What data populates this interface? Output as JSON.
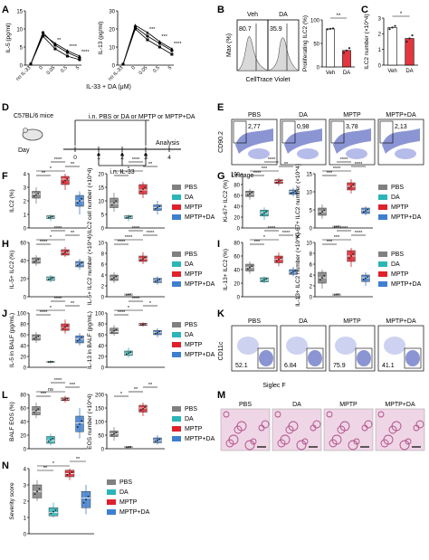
{
  "panels": {
    "A": {
      "letter": "A",
      "xlabel": "IL-33 + DA (μM)",
      "xticks": [
        "no IL-33",
        "0",
        "0.05",
        "0.5",
        "5"
      ]
    },
    "B": {
      "letter": "B",
      "veh": "Veh",
      "da": "DA",
      "veh_pct": "80.7",
      "da_pct": "35.9",
      "xlabel": "CellTrace Violet",
      "ylabel": "Max (%)"
    },
    "C": {
      "letter": "C"
    },
    "D": {
      "letter": "D",
      "mouse": "C57BL/6 mice",
      "day": "Day",
      "treatment": "i.n. PBS or DA or MPTP or MPTP+DA",
      "analysis": "Analysis",
      "il33": "i.n. IL-33",
      "days": [
        "0",
        "1",
        "2",
        "3",
        "4"
      ]
    },
    "E": {
      "letter": "E",
      "groups": [
        "PBS",
        "DA",
        "MPTP",
        "MPTP+DA"
      ],
      "values": [
        "2,77",
        "0,98",
        "3,78",
        "2,13"
      ],
      "ylabel": "CD90.2",
      "xlabel": "Lineage"
    },
    "F": {
      "letter": "F"
    },
    "G": {
      "letter": "G"
    },
    "H": {
      "letter": "H"
    },
    "I": {
      "letter": "I"
    },
    "J": {
      "letter": "J"
    },
    "K": {
      "letter": "K",
      "groups": [
        "PBS",
        "DA",
        "MPTP",
        "MPTP+DA"
      ],
      "values": [
        "52.1",
        "6.84",
        "75.9",
        "41.1"
      ],
      "ylabel": "CD11c",
      "xlabel": "Siglec F"
    },
    "L": {
      "letter": "L"
    },
    "M": {
      "letter": "M",
      "groups": [
        "PBS",
        "DA",
        "MPTP",
        "MPTP+DA"
      ]
    },
    "N": {
      "letter": "N"
    }
  },
  "legend": {
    "labels": [
      "PBS",
      "DA",
      "MPTP",
      "MPTP+DA"
    ],
    "colors": [
      "#808080",
      "#2bb5b8",
      "#e0202a",
      "#3e7fd0"
    ]
  },
  "chart_data": [
    {
      "type": "line",
      "id": "A1",
      "ylabel": "IL-5 (pg/ml)",
      "ylim": [
        0,
        15
      ],
      "yticks": [
        0,
        5,
        10,
        15
      ],
      "categories": [
        "no IL-33",
        "0",
        "0.05",
        "0.5",
        "5"
      ],
      "series": [
        {
          "values": [
            0.3,
            9.0,
            5.5,
            3.5,
            2.0
          ]
        },
        {
          "values": [
            0.3,
            8.0,
            4.5,
            2.5,
            1.5
          ]
        },
        {
          "values": [
            0.3,
            8.5,
            6.0,
            4.0,
            2.5
          ]
        }
      ],
      "stars": [
        {
          "x": 2,
          "y": 6.5,
          "t": "**"
        },
        {
          "x": 3,
          "y": 4.8,
          "t": "****"
        },
        {
          "x": 4,
          "y": 3.3,
          "t": "****"
        }
      ]
    },
    {
      "type": "line",
      "id": "A2",
      "ylabel": "IL-13 (pg/ml)",
      "ylim": [
        0,
        30
      ],
      "yticks": [
        0,
        10,
        20,
        30
      ],
      "categories": [
        "no IL-33",
        "0",
        "0.05",
        "0.5",
        "5"
      ],
      "series": [
        {
          "values": [
            0.5,
            21,
            16,
            12,
            8
          ]
        },
        {
          "values": [
            0.5,
            20,
            14,
            10,
            6
          ]
        },
        {
          "values": [
            0.5,
            22,
            18,
            13,
            9
          ]
        }
      ],
      "stars": [
        {
          "x": 2,
          "y": 19,
          "t": "***"
        },
        {
          "x": 3,
          "y": 15,
          "t": "***"
        },
        {
          "x": 4,
          "y": 11,
          "t": "****"
        }
      ]
    },
    {
      "type": "bar",
      "id": "B",
      "ylabel": "Proliferating ILC2 (%)",
      "ylim": [
        0,
        100
      ],
      "yticks": [
        0,
        50,
        100
      ],
      "categories": [
        "Veh",
        "DA"
      ],
      "values": [
        81,
        35
      ],
      "points": [
        [
          80,
          81,
          82
        ],
        [
          30,
          35,
          40
        ]
      ],
      "colors": [
        "#ffffff",
        "#e0202a"
      ],
      "sig": [
        "**"
      ]
    },
    {
      "type": "bar",
      "id": "C",
      "ylabel": "ILC2 number (×10^4)",
      "ylim": [
        0,
        3
      ],
      "yticks": [
        0,
        1,
        2,
        3
      ],
      "categories": [
        "Veh",
        "DA"
      ],
      "values": [
        2.4,
        1.7
      ],
      "points": [
        [
          2.3,
          2.4,
          2.5
        ],
        [
          1.5,
          1.7,
          1.9
        ]
      ],
      "colors": [
        "#ffffff",
        "#e0202a"
      ],
      "sig": [
        "*"
      ]
    },
    {
      "type": "box",
      "id": "F1",
      "ylabel": "ILC2 (%)",
      "ylim": [
        0,
        4
      ],
      "yticks": [
        0,
        1,
        2,
        3,
        4
      ],
      "boxes": [
        [
          1.8,
          2.2,
          2.5,
          2.7,
          3.0
        ],
        [
          0.5,
          0.7,
          0.8,
          0.9,
          1.0
        ],
        [
          2.8,
          3.2,
          3.6,
          3.8,
          4.0
        ],
        [
          1.0,
          1.6,
          2.0,
          2.4,
          2.7
        ]
      ],
      "sig": [
        [
          0,
          1,
          "**"
        ],
        [
          0,
          2,
          "*"
        ],
        [
          2,
          3,
          "**"
        ],
        [
          1,
          2,
          "****"
        ]
      ]
    },
    {
      "type": "box",
      "id": "F2",
      "ylabel": "ILC2 cell number (×10^4)",
      "ylim": [
        0,
        20
      ],
      "yticks": [
        0,
        5,
        10,
        15,
        20
      ],
      "boxes": [
        [
          6,
          7.5,
          9,
          11,
          13
        ],
        [
          2.5,
          3.5,
          4,
          4.5,
          5
        ],
        [
          11,
          12.5,
          14,
          16,
          17
        ],
        [
          5,
          6.5,
          7.5,
          8.5,
          10
        ]
      ],
      "sig": [
        [
          0,
          1,
          "*"
        ],
        [
          0,
          2,
          "*"
        ],
        [
          2,
          3,
          "**"
        ],
        [
          1,
          2,
          "****"
        ]
      ]
    },
    {
      "type": "box",
      "id": "G1",
      "ylabel": "Ki-67+ ILC2 (%)",
      "ylim": [
        0,
        100
      ],
      "yticks": [
        0,
        20,
        40,
        60,
        80,
        100
      ],
      "boxes": [
        [
          52,
          58,
          63,
          68,
          72
        ],
        [
          15,
          22,
          28,
          33,
          38
        ],
        [
          78,
          82,
          86,
          89,
          92
        ],
        [
          58,
          62,
          67,
          70,
          74
        ]
      ],
      "sig": [
        [
          0,
          1,
          "****"
        ],
        [
          0,
          2,
          "***"
        ],
        [
          2,
          3,
          "**"
        ],
        [
          1,
          2,
          "****"
        ]
      ]
    },
    {
      "type": "box",
      "id": "G2",
      "ylabel": "Ki-67+ ILC2 number (×10^4)",
      "ylim": [
        0,
        15
      ],
      "yticks": [
        0,
        5,
        10,
        15
      ],
      "boxes": [
        [
          2.5,
          3.5,
          4.5,
          5.5,
          6.5
        ],
        [
          0.2,
          0.3,
          0.4,
          0.5,
          0.6
        ],
        [
          9.5,
          10.5,
          11.5,
          12.5,
          13.5
        ],
        [
          3.5,
          4,
          4.8,
          5.5,
          6
        ]
      ],
      "sig": [
        [
          0,
          1,
          "***"
        ],
        [
          0,
          2,
          "****"
        ],
        [
          2,
          3,
          "****"
        ],
        [
          1,
          2,
          "****"
        ]
      ]
    },
    {
      "type": "box",
      "id": "H1",
      "ylabel": "IL-5+ ILC2 (%)",
      "ylim": [
        0,
        60
      ],
      "yticks": [
        0,
        20,
        40,
        60
      ],
      "boxes": [
        [
          34,
          37,
          40,
          43,
          46
        ],
        [
          16,
          18,
          20,
          22,
          24
        ],
        [
          44,
          46,
          49,
          52,
          55
        ],
        [
          30,
          33,
          36,
          39,
          42
        ]
      ],
      "sig": [
        [
          0,
          1,
          "****"
        ],
        [
          0,
          2,
          "*"
        ],
        [
          2,
          3,
          "**"
        ],
        [
          1,
          2,
          "****"
        ]
      ]
    },
    {
      "type": "box",
      "id": "H2",
      "ylabel": "IL-5+ ILC2 number (×10^4)",
      "ylim": [
        0,
        10
      ],
      "yticks": [
        0,
        2,
        4,
        6,
        8,
        10
      ],
      "boxes": [
        [
          2.5,
          3,
          3.5,
          4,
          4.5
        ],
        [
          0.2,
          0.3,
          0.4,
          0.5,
          0.6
        ],
        [
          6,
          6.5,
          7,
          7.5,
          8.2
        ],
        [
          2.2,
          2.6,
          3,
          3.4,
          3.8
        ]
      ],
      "sig": [
        [
          0,
          1,
          "****"
        ],
        [
          0,
          2,
          "****"
        ],
        [
          2,
          3,
          "****"
        ],
        [
          1,
          2,
          "****"
        ]
      ]
    },
    {
      "type": "box",
      "id": "I1",
      "ylabel": "IL-13+ ILC2 (%)",
      "ylim": [
        0,
        80
      ],
      "yticks": [
        0,
        20,
        40,
        60,
        80
      ],
      "boxes": [
        [
          34,
          38,
          43,
          48,
          52
        ],
        [
          20,
          22,
          25,
          28,
          30
        ],
        [
          45,
          50,
          55,
          60,
          65
        ],
        [
          30,
          33,
          36,
          40,
          44
        ]
      ],
      "sig": [
        [
          0,
          1,
          "***"
        ],
        [
          0,
          2,
          "*"
        ],
        [
          2,
          3,
          "****"
        ],
        [
          1,
          2,
          "****"
        ]
      ]
    },
    {
      "type": "box",
      "id": "I2",
      "ylabel": "IL-13+ ILC2 number (×10^4)",
      "ylim": [
        0,
        10
      ],
      "yticks": [
        0,
        2,
        4,
        6,
        8,
        10
      ],
      "boxes": [
        [
          1.5,
          2.5,
          3.5,
          4.5,
          5
        ],
        [
          0.2,
          0.3,
          0.4,
          0.5,
          0.6
        ],
        [
          5.5,
          6.5,
          7.5,
          8.5,
          9
        ],
        [
          2,
          2.8,
          3.5,
          4,
          4.5
        ]
      ],
      "sig": [
        [
          0,
          1,
          "***"
        ],
        [
          0,
          2,
          "***"
        ],
        [
          2,
          3,
          "****"
        ],
        [
          1,
          2,
          "****"
        ]
      ]
    },
    {
      "type": "box",
      "id": "J1",
      "ylabel": "IL-5 in BALF (pg/mL)",
      "ylim": [
        0,
        100
      ],
      "yticks": [
        0,
        20,
        40,
        60,
        80,
        100
      ],
      "boxes": [
        [
          45,
          50,
          55,
          60,
          65
        ],
        [
          7,
          9,
          10,
          11,
          13
        ],
        [
          62,
          68,
          73,
          80,
          88
        ],
        [
          40,
          45,
          52,
          58,
          63
        ]
      ],
      "sig": [
        [
          0,
          1,
          "****"
        ],
        [
          0,
          2,
          "*"
        ],
        [
          2,
          3,
          "**"
        ],
        [
          1,
          2,
          "****"
        ]
      ]
    },
    {
      "type": "box",
      "id": "J2",
      "ylabel": "IL-13 in BALF (pg/mL)",
      "ylim": [
        0,
        100
      ],
      "yticks": [
        0,
        20,
        40,
        60,
        80,
        100
      ],
      "boxes": [
        [
          58,
          62,
          66,
          72,
          78
        ],
        [
          18,
          22,
          25,
          30,
          36
        ],
        [
          75,
          77,
          79,
          81,
          83
        ],
        [
          55,
          60,
          64,
          68,
          72
        ]
      ],
      "sig": [
        [
          0,
          1,
          "****"
        ],
        [
          0,
          2,
          "*"
        ],
        [
          2,
          3,
          "*"
        ],
        [
          1,
          2,
          "****"
        ]
      ]
    },
    {
      "type": "box",
      "id": "L1",
      "ylabel": "BALF EOS (%)",
      "ylim": [
        0,
        80
      ],
      "yticks": [
        0,
        20,
        40,
        60,
        80
      ],
      "boxes": [
        [
          45,
          50,
          55,
          62,
          68
        ],
        [
          5,
          8,
          12,
          18,
          22
        ],
        [
          68,
          71,
          73,
          75,
          78
        ],
        [
          15,
          25,
          38,
          48,
          60
        ]
      ],
      "sig": [
        [
          0,
          1,
          "***"
        ],
        [
          0,
          2,
          "ns"
        ],
        [
          2,
          3,
          "***"
        ],
        [
          1,
          2,
          "****"
        ]
      ]
    },
    {
      "type": "box",
      "id": "L2",
      "ylabel": "EOS number (×10^4)",
      "ylim": [
        0,
        200
      ],
      "yticks": [
        0,
        50,
        100,
        150,
        200
      ],
      "boxes": [
        [
          30,
          45,
          55,
          65,
          80
        ],
        [
          2,
          4,
          6,
          8,
          10
        ],
        [
          120,
          135,
          150,
          160,
          170
        ],
        [
          15,
          22,
          30,
          40,
          50
        ]
      ],
      "sig": [
        [
          0,
          1,
          "*"
        ],
        [
          1,
          2,
          "**"
        ],
        [
          2,
          3,
          "**"
        ]
      ]
    },
    {
      "type": "box",
      "id": "N",
      "ylabel": "Severity score",
      "ylim": [
        0,
        4
      ],
      "yticks": [
        0,
        1,
        2,
        3,
        4
      ],
      "boxes": [
        [
          2.0,
          2.2,
          2.6,
          3.0,
          3.3
        ],
        [
          1.0,
          1.1,
          1.3,
          1.6,
          1.9
        ],
        [
          3.3,
          3.5,
          3.7,
          3.9,
          4.0
        ],
        [
          1.2,
          1.6,
          2.2,
          2.6,
          3.0
        ]
      ],
      "sig": [
        [
          0,
          1,
          "**"
        ],
        [
          0,
          2,
          "*"
        ],
        [
          2,
          3,
          "**"
        ]
      ]
    }
  ]
}
